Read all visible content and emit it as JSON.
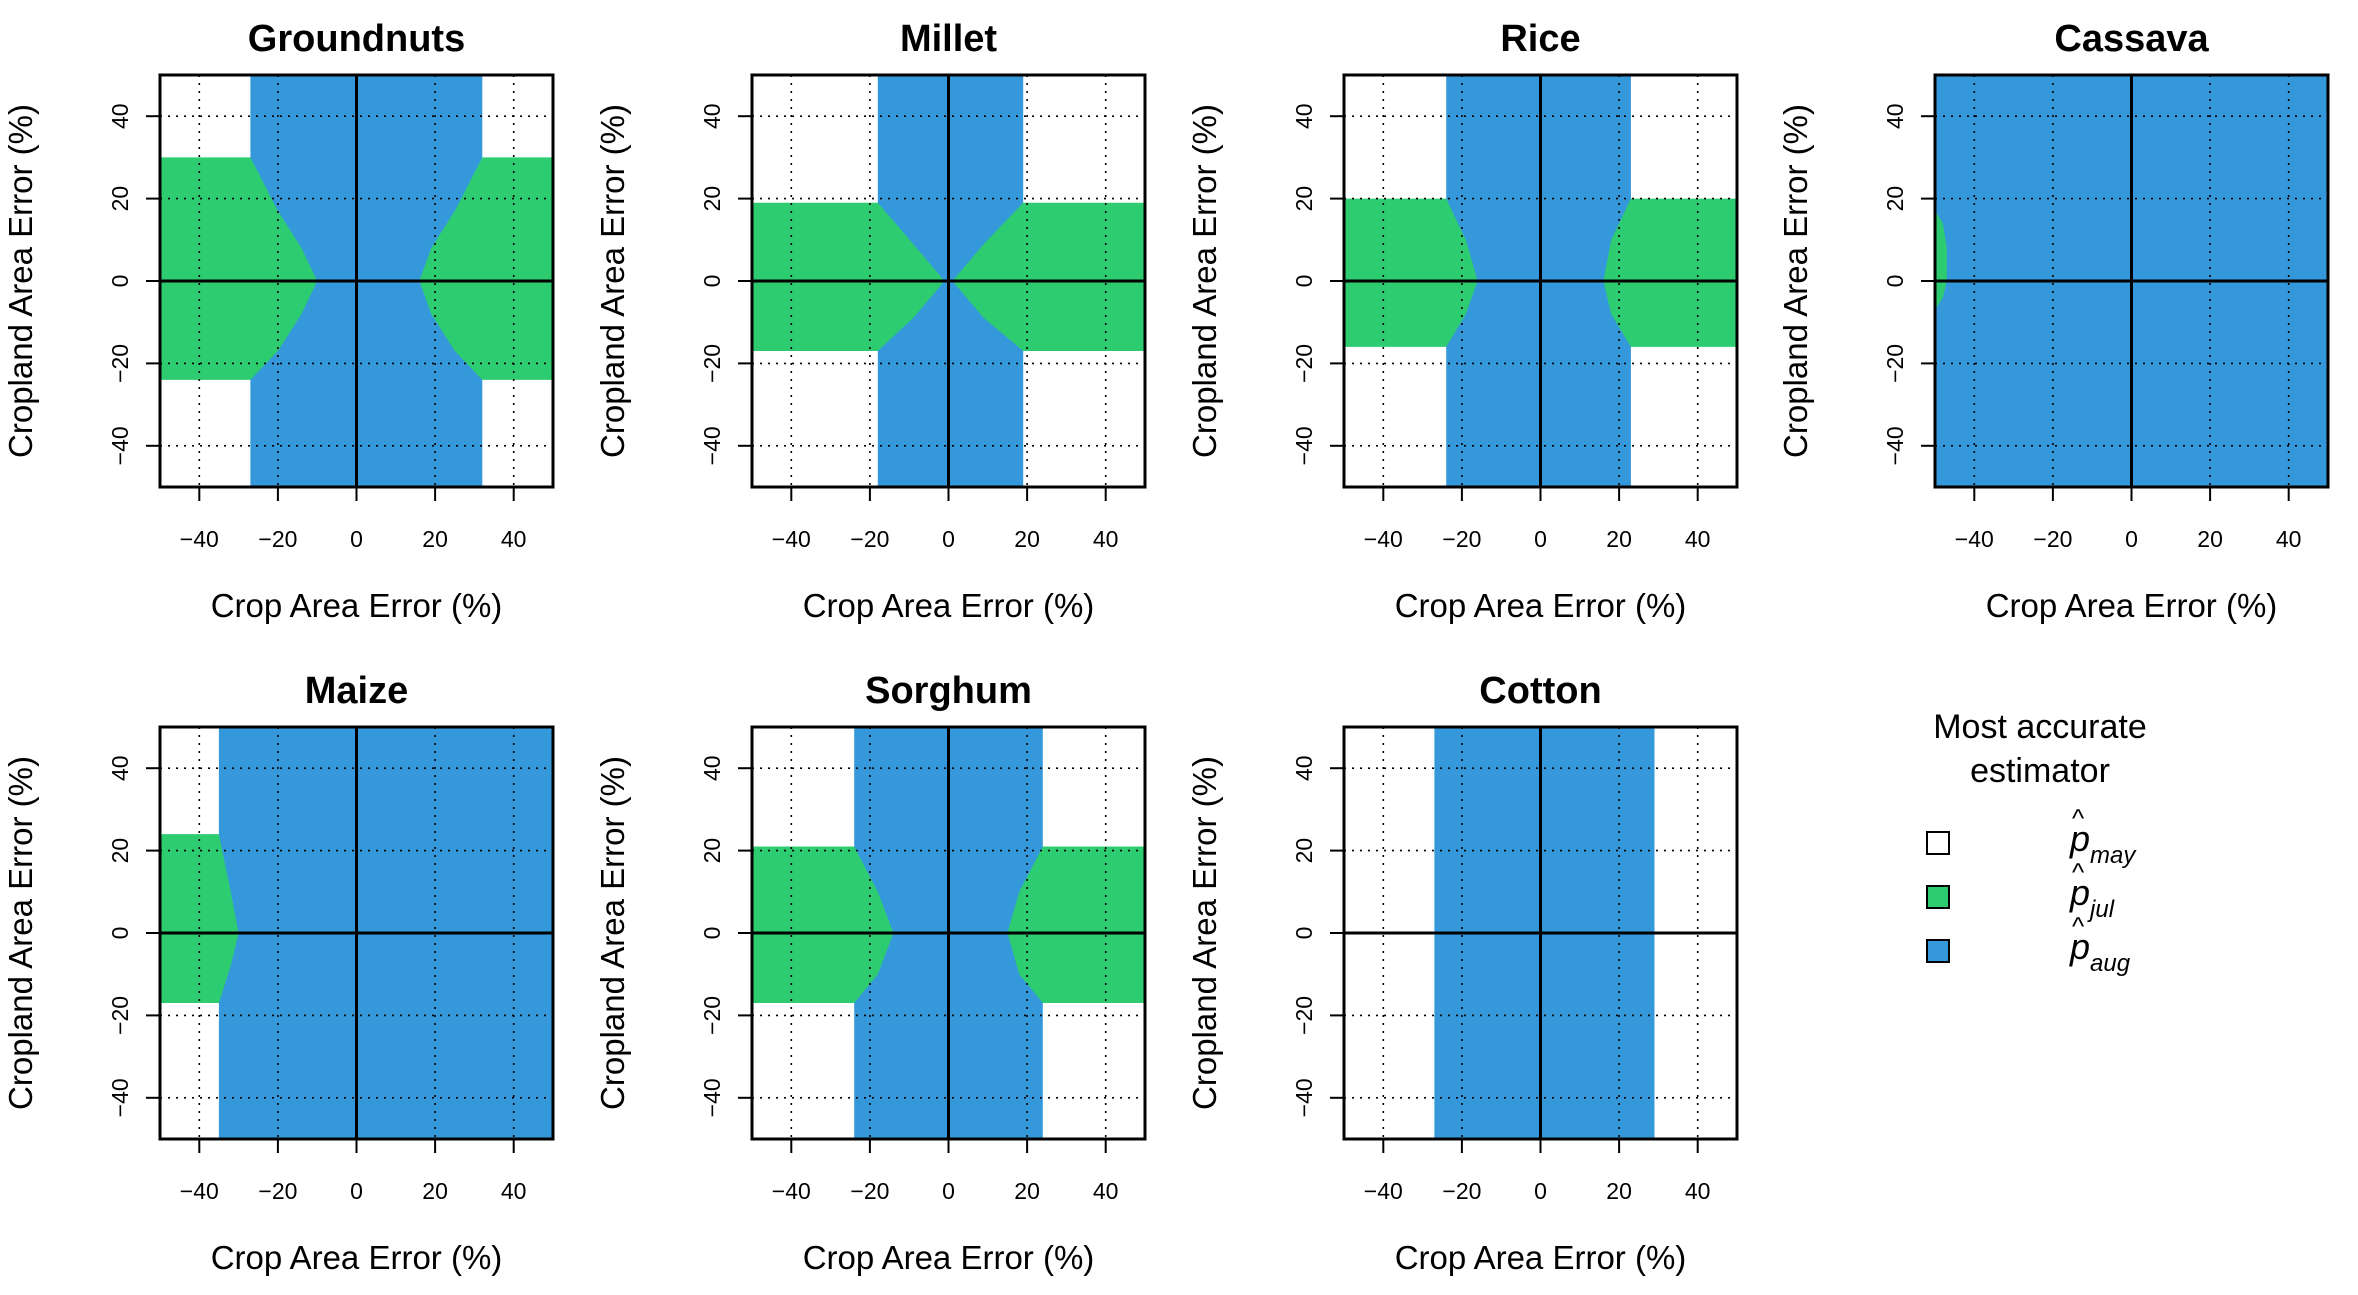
{
  "colors": {
    "may": "#FFFFFF",
    "jul": "#2ECC71",
    "aug": "#3498DB",
    "grid": "#000000",
    "frame": "#000000"
  },
  "legend": {
    "title_line1": "Most accurate",
    "title_line2": "estimator",
    "items": [
      {
        "symbol": "p",
        "subscript": "may",
        "color_key": "may"
      },
      {
        "symbol": "p",
        "subscript": "jul",
        "color_key": "jul"
      },
      {
        "symbol": "p",
        "subscript": "aug",
        "color_key": "aug"
      }
    ]
  },
  "chart_data": [
    {
      "type": "heatmap",
      "title": "Groundnuts",
      "xlabel": "Crop Area Error (%)",
      "ylabel": "Cropland Area Error (%)",
      "xlim": [
        -50,
        50
      ],
      "ylim": [
        -50,
        50
      ],
      "xticks": [
        -40,
        -20,
        0,
        20,
        40
      ],
      "yticks": [
        -40,
        -20,
        0,
        20,
        40
      ],
      "grid": true,
      "regions": [
        {
          "estimator": "aug",
          "polygon": [
            [
              -27,
              -50
            ],
            [
              32,
              -50
            ],
            [
              32,
              50
            ],
            [
              -27,
              50
            ]
          ]
        },
        {
          "estimator": "jul",
          "polygon": [
            [
              -50,
              -24
            ],
            [
              -27,
              -24
            ],
            [
              -20,
              -17
            ],
            [
              -14,
              -8
            ],
            [
              -10,
              0
            ],
            [
              -14,
              8
            ],
            [
              -20,
              17
            ],
            [
              -27,
              30
            ],
            [
              -50,
              30
            ]
          ]
        },
        {
          "estimator": "jul",
          "polygon": [
            [
              50,
              -24
            ],
            [
              32,
              -24
            ],
            [
              25,
              -17
            ],
            [
              19,
              -8
            ],
            [
              16,
              0
            ],
            [
              19,
              8
            ],
            [
              25,
              17
            ],
            [
              32,
              30
            ],
            [
              50,
              30
            ]
          ]
        }
      ]
    },
    {
      "type": "heatmap",
      "title": "Millet",
      "xlabel": "Crop Area Error (%)",
      "ylabel": "Cropland Area Error (%)",
      "xlim": [
        -50,
        50
      ],
      "ylim": [
        -50,
        50
      ],
      "xticks": [
        -40,
        -20,
        0,
        20,
        40
      ],
      "yticks": [
        -40,
        -20,
        0,
        20,
        40
      ],
      "grid": true,
      "regions": [
        {
          "estimator": "aug",
          "polygon": [
            [
              -18,
              -50
            ],
            [
              19,
              -50
            ],
            [
              19,
              50
            ],
            [
              -18,
              50
            ]
          ]
        },
        {
          "estimator": "jul",
          "polygon": [
            [
              -50,
              -17
            ],
            [
              -18,
              -17
            ],
            [
              -9,
              -9
            ],
            [
              -1,
              0
            ],
            [
              -9,
              9
            ],
            [
              -18,
              19
            ],
            [
              -50,
              19
            ]
          ]
        },
        {
          "estimator": "jul",
          "polygon": [
            [
              50,
              -17
            ],
            [
              19,
              -17
            ],
            [
              9,
              -9
            ],
            [
              1,
              0
            ],
            [
              9,
              9
            ],
            [
              19,
              19
            ],
            [
              50,
              19
            ]
          ]
        }
      ]
    },
    {
      "type": "heatmap",
      "title": "Rice",
      "xlabel": "Crop Area Error (%)",
      "ylabel": "Cropland Area Error (%)",
      "xlim": [
        -50,
        50
      ],
      "ylim": [
        -50,
        50
      ],
      "xticks": [
        -40,
        -20,
        0,
        20,
        40
      ],
      "yticks": [
        -40,
        -20,
        0,
        20,
        40
      ],
      "grid": true,
      "regions": [
        {
          "estimator": "aug",
          "polygon": [
            [
              -24,
              -50
            ],
            [
              23,
              -50
            ],
            [
              23,
              50
            ],
            [
              -24,
              50
            ]
          ]
        },
        {
          "estimator": "jul",
          "polygon": [
            [
              -50,
              -16
            ],
            [
              -24,
              -16
            ],
            [
              -19,
              -8
            ],
            [
              -16,
              0
            ],
            [
              -19,
              10
            ],
            [
              -24,
              20
            ],
            [
              -50,
              20
            ]
          ]
        },
        {
          "estimator": "jul",
          "polygon": [
            [
              50,
              -16
            ],
            [
              23,
              -16
            ],
            [
              18,
              -8
            ],
            [
              16,
              0
            ],
            [
              18,
              10
            ],
            [
              23,
              20
            ],
            [
              50,
              20
            ]
          ]
        }
      ]
    },
    {
      "type": "heatmap",
      "title": "Cassava",
      "xlabel": "Crop Area Error (%)",
      "ylabel": "Cropland Area Error (%)",
      "xlim": [
        -50,
        50
      ],
      "ylim": [
        -50,
        50
      ],
      "xticks": [
        -40,
        -20,
        0,
        20,
        40
      ],
      "yticks": [
        -40,
        -20,
        0,
        20,
        40
      ],
      "grid": true,
      "regions": [
        {
          "estimator": "aug",
          "polygon": [
            [
              -50,
              -50
            ],
            [
              50,
              -50
            ],
            [
              50,
              50
            ],
            [
              -50,
              50
            ]
          ]
        },
        {
          "estimator": "jul",
          "polygon": [
            [
              -50,
              -7
            ],
            [
              -48,
              -4
            ],
            [
              -47,
              0
            ],
            [
              -47,
              8
            ],
            [
              -48,
              14
            ],
            [
              -50,
              17
            ]
          ]
        }
      ]
    },
    {
      "type": "heatmap",
      "title": "Maize",
      "xlabel": "Crop Area Error (%)",
      "ylabel": "Cropland Area Error (%)",
      "xlim": [
        -50,
        50
      ],
      "ylim": [
        -50,
        50
      ],
      "xticks": [
        -40,
        -20,
        0,
        20,
        40
      ],
      "yticks": [
        -40,
        -20,
        0,
        20,
        40
      ],
      "grid": true,
      "regions": [
        {
          "estimator": "aug",
          "polygon": [
            [
              -35,
              -50
            ],
            [
              50,
              -50
            ],
            [
              50,
              50
            ],
            [
              -35,
              50
            ]
          ]
        },
        {
          "estimator": "jul",
          "polygon": [
            [
              -50,
              -17
            ],
            [
              -35,
              -17
            ],
            [
              -32,
              -8
            ],
            [
              -30,
              0
            ],
            [
              -32,
              10
            ],
            [
              -35,
              24
            ],
            [
              -50,
              24
            ]
          ]
        }
      ]
    },
    {
      "type": "heatmap",
      "title": "Sorghum",
      "xlabel": "Crop Area Error (%)",
      "ylabel": "Cropland Area Error (%)",
      "xlim": [
        -50,
        50
      ],
      "ylim": [
        -50,
        50
      ],
      "xticks": [
        -40,
        -20,
        0,
        20,
        40
      ],
      "yticks": [
        -40,
        -20,
        0,
        20,
        40
      ],
      "grid": true,
      "regions": [
        {
          "estimator": "aug",
          "polygon": [
            [
              -24,
              -50
            ],
            [
              24,
              -50
            ],
            [
              24,
              50
            ],
            [
              -24,
              50
            ]
          ]
        },
        {
          "estimator": "jul",
          "polygon": [
            [
              -50,
              -17
            ],
            [
              -24,
              -17
            ],
            [
              -18,
              -10
            ],
            [
              -14,
              0
            ],
            [
              -18,
              10
            ],
            [
              -24,
              21
            ],
            [
              -50,
              21
            ]
          ]
        },
        {
          "estimator": "jul",
          "polygon": [
            [
              50,
              -17
            ],
            [
              24,
              -17
            ],
            [
              18,
              -10
            ],
            [
              15,
              0
            ],
            [
              18,
              10
            ],
            [
              24,
              21
            ],
            [
              50,
              21
            ]
          ]
        }
      ]
    },
    {
      "type": "heatmap",
      "title": "Cotton",
      "xlabel": "Crop Area Error (%)",
      "ylabel": "Cropland Area Error (%)",
      "xlim": [
        -50,
        50
      ],
      "ylim": [
        -50,
        50
      ],
      "xticks": [
        -40,
        -20,
        0,
        20,
        40
      ],
      "yticks": [
        -40,
        -20,
        0,
        20,
        40
      ],
      "grid": true,
      "regions": [
        {
          "estimator": "aug",
          "polygon": [
            [
              -27,
              -50
            ],
            [
              29,
              -50
            ],
            [
              29,
              50
            ],
            [
              -27,
              50
            ]
          ]
        }
      ]
    }
  ]
}
